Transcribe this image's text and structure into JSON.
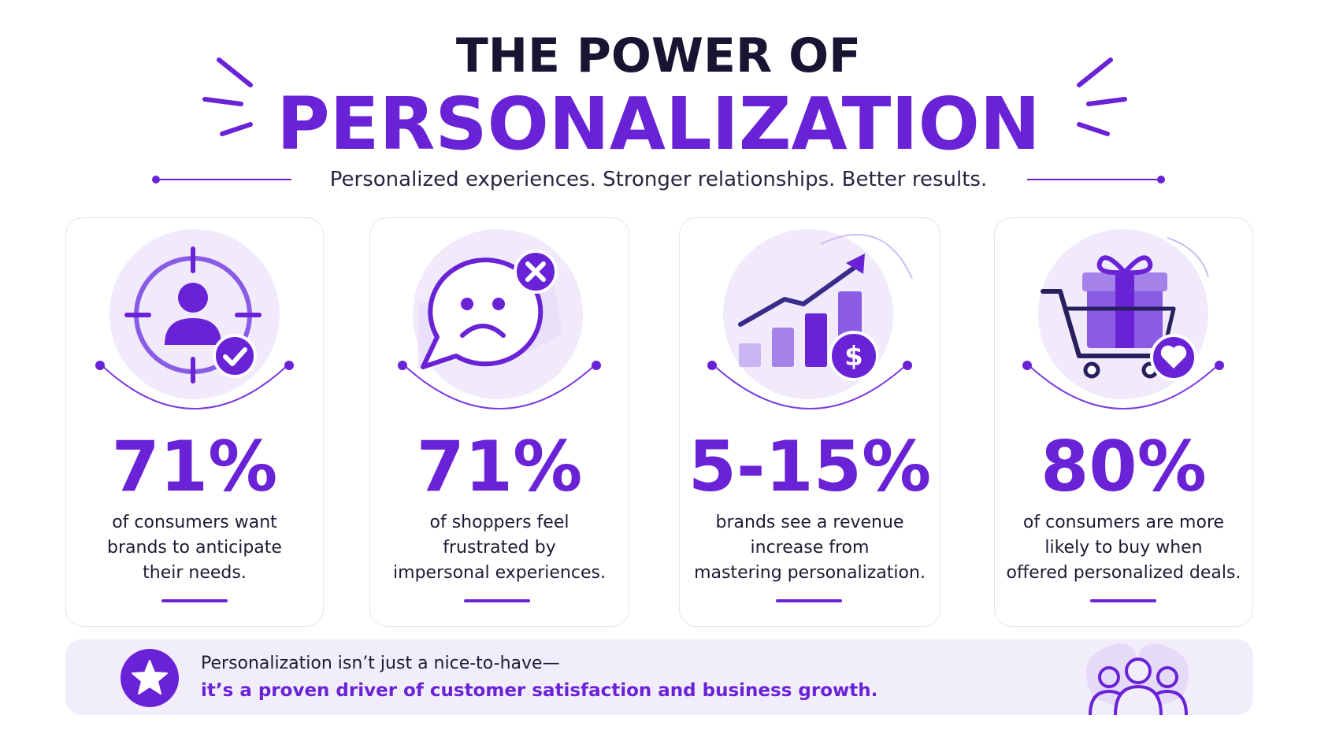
{
  "header": {
    "title_line1": "THE POWER OF",
    "title_line2": "PERSONALIZATION",
    "subtitle": "Personalized experiences. Stronger relationships. Better results."
  },
  "cards": [
    {
      "icon": "target-user-icon",
      "stat": "71%",
      "lines": [
        "of consumers want",
        "brands to anticipate",
        "their needs."
      ]
    },
    {
      "icon": "sad-chat-bubble-icon",
      "stat": "71%",
      "lines": [
        "of shoppers feel",
        "frustrated by",
        "impersonal experiences."
      ]
    },
    {
      "icon": "growth-chart-dollar-icon",
      "stat": "5-15%",
      "lines": [
        "brands see a revenue",
        "increase from",
        "mastering personalization."
      ]
    },
    {
      "icon": "gift-cart-heart-icon",
      "stat": "80%",
      "lines": [
        "of consumers are more",
        "likely to buy when",
        "offered personalized deals."
      ]
    }
  ],
  "banner": {
    "line1": "Personalization isn’t just a nice-to-have—",
    "line2": "it’s a proven driver of customer satisfaction and business growth.",
    "icon_left": "star-icon",
    "icon_right": "people-group-icon"
  },
  "colors": {
    "accent": "#6a22d6",
    "dark": "#1a1433",
    "soft": "#efe9fb"
  }
}
